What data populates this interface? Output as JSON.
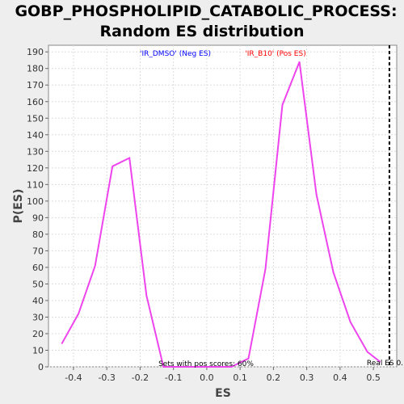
{
  "chart_data": {
    "type": "line",
    "title_line1": "GOBP_PHOSPHOLIPID_CATABOLIC_PROCESS:",
    "title_line2": "Random ES distribution",
    "xlabel": "ES",
    "ylabel": "P(ES)",
    "xlim": [
      -0.475,
      0.57
    ],
    "ylim": [
      0,
      194
    ],
    "x_ticks": [
      -0.4,
      -0.3,
      -0.2,
      -0.1,
      0.0,
      0.1,
      0.2,
      0.3,
      0.4,
      0.5
    ],
    "x_tick_labels": [
      "-0.4",
      "-0.3",
      "-0.2",
      "-0.1",
      "0.0",
      "0.1",
      "0.2",
      "0.3",
      "0.4",
      "0.5"
    ],
    "y_ticks": [
      0,
      10,
      20,
      30,
      40,
      50,
      60,
      70,
      80,
      90,
      100,
      110,
      120,
      130,
      140,
      150,
      160,
      170,
      180,
      190
    ],
    "grid": true,
    "series": [
      {
        "color": "#ee44ee",
        "x": [
          -0.435,
          -0.385,
          -0.335,
          -0.283,
          -0.232,
          -0.181,
          -0.13,
          -0.079,
          -0.028,
          0.023,
          0.074,
          0.125,
          0.176,
          0.227,
          0.278,
          0.329,
          0.38,
          0.431,
          0.482,
          0.52
        ],
        "y": [
          14,
          32,
          61,
          121,
          126,
          43,
          0,
          0,
          0,
          0,
          0,
          5,
          59,
          158,
          184,
          104,
          57,
          27,
          9,
          3
        ]
      }
    ],
    "real_es": {
      "x": 0.548,
      "label": "Real ES 0."
    },
    "annotations": {
      "neg_label": "'IR_DMSO' (Neg ES)",
      "pos_label": "'IR_B10' (Pos ES)",
      "sets_pos": "Sets with pos scores: 60%"
    },
    "colors": {
      "neg": "#0000ff",
      "pos": "#ff0000",
      "background": "#eeeeee",
      "plot": "#ffffff"
    }
  }
}
